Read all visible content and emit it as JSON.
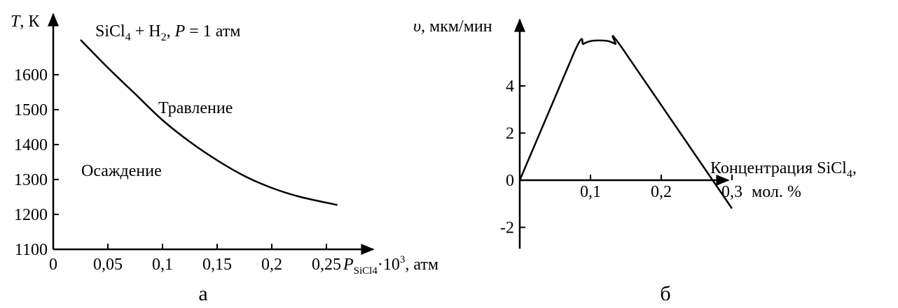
{
  "chart_data": [
    {
      "type": "line",
      "panel_label": "а",
      "title": {
        "main": "SiCl",
        "sub4": "4",
        "mid": " + H",
        "sub2": "2",
        "sep": ", ",
        "p": "P",
        "tail": " = 1 атм"
      },
      "ylabel": {
        "var": "T",
        "unit": ", К"
      },
      "xlabel": {
        "var": "P",
        "sub": "SiCl4",
        "mult": "·10",
        "sup": "3",
        "unit": ", атм"
      },
      "xlim": [
        0,
        0.3
      ],
      "ylim": [
        1100,
        1700
      ],
      "xticks": [
        "0",
        "0,05",
        "0,1",
        "0,15",
        "0,2",
        "0,25"
      ],
      "yticks": [
        "1100",
        "1200",
        "1300",
        "1400",
        "1500",
        "1600"
      ],
      "annotations": {
        "upper": "Травление",
        "lower": "Осаждение"
      },
      "series": [
        {
          "x": [
            0.025,
            0.05,
            0.075,
            0.1,
            0.125,
            0.15,
            0.175,
            0.2,
            0.225,
            0.26
          ],
          "y": [
            1700,
            1620,
            1545,
            1470,
            1408,
            1355,
            1310,
            1276,
            1251,
            1227
          ]
        }
      ]
    },
    {
      "type": "line",
      "panel_label": "б",
      "ylabel": {
        "var": "υ",
        "unit": ", мкм/мин"
      },
      "xlabel": {
        "line1a": "Концентрация SiCl",
        "line1sub": "4",
        "line1b": ",",
        "line2": "мол. %"
      },
      "xlim": [
        0,
        0.3
      ],
      "ylim": [
        -2,
        6
      ],
      "xticks": [
        "0,1",
        "0,2",
        "0,3"
      ],
      "yticks": [
        "-2",
        "0",
        "2",
        "4"
      ],
      "series": [
        {
          "x": [
            0,
            0.078,
            0.09,
            0.1,
            0.112,
            0.125,
            0.135,
            0.146,
            0.3
          ],
          "y": [
            0,
            5.5,
            5.78,
            5.9,
            5.93,
            5.9,
            5.78,
            5.55,
            -1.2
          ]
        }
      ]
    }
  ]
}
